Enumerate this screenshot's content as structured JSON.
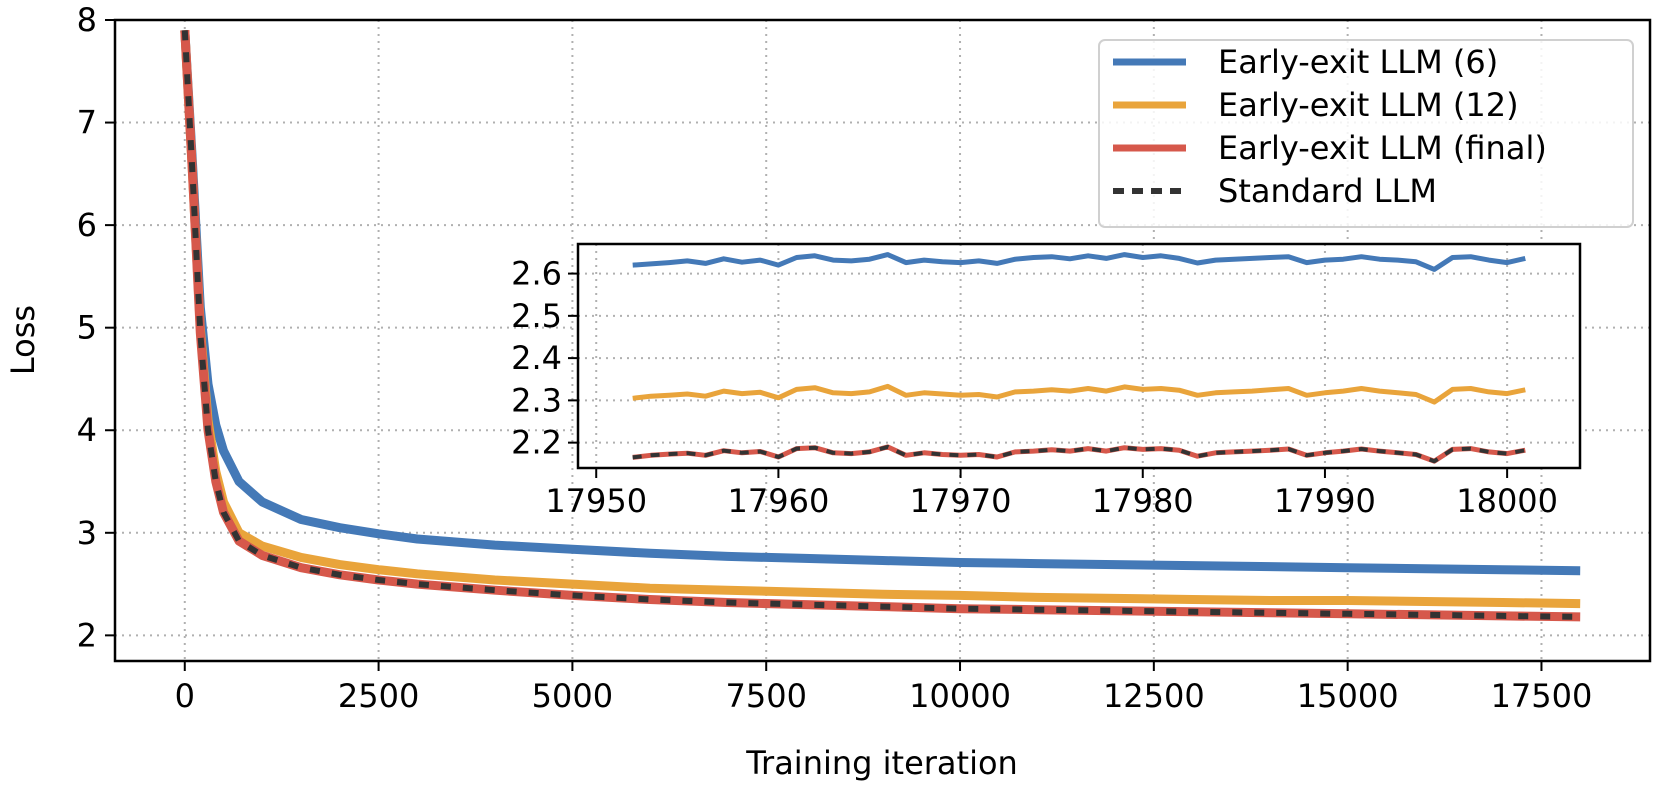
{
  "chart_data": [
    {
      "type": "line",
      "xlabel": "Training iteration",
      "ylabel": "Loss",
      "xlim": [
        -900,
        18900
      ],
      "ylim": [
        1.75,
        8
      ],
      "xticks": [
        0,
        2500,
        5000,
        7500,
        10000,
        12500,
        15000,
        17500
      ],
      "yticks": [
        2,
        3,
        4,
        5,
        6,
        7,
        8
      ],
      "grid": true,
      "legend": {
        "position": "top-right"
      },
      "series": [
        {
          "name": "Early-exit LLM (6)",
          "color": "#4479b7",
          "style": "solid",
          "x": [
            0,
            100,
            200,
            300,
            400,
            500,
            700,
            1000,
            1500,
            2000,
            2500,
            3000,
            4000,
            5000,
            6000,
            7000,
            8000,
            9000,
            10000,
            11000,
            12000,
            13000,
            14000,
            15000,
            16000,
            17000,
            18000
          ],
          "y": [
            7.9,
            6.6,
            5.2,
            4.45,
            4.05,
            3.8,
            3.5,
            3.3,
            3.13,
            3.05,
            2.99,
            2.94,
            2.88,
            2.84,
            2.8,
            2.77,
            2.75,
            2.73,
            2.71,
            2.7,
            2.69,
            2.68,
            2.67,
            2.66,
            2.65,
            2.64,
            2.63
          ]
        },
        {
          "name": "Early-exit LLM (12)",
          "color": "#e9a43b",
          "style": "solid",
          "x": [
            0,
            100,
            200,
            300,
            400,
            500,
            700,
            1000,
            1500,
            2000,
            2500,
            3000,
            4000,
            5000,
            6000,
            7000,
            8000,
            9000,
            10000,
            11000,
            12000,
            13000,
            14000,
            15000,
            16000,
            17000,
            18000
          ],
          "y": [
            7.9,
            6.5,
            5.0,
            4.1,
            3.6,
            3.3,
            3.0,
            2.87,
            2.76,
            2.69,
            2.64,
            2.6,
            2.54,
            2.5,
            2.46,
            2.44,
            2.42,
            2.4,
            2.39,
            2.37,
            2.36,
            2.35,
            2.34,
            2.34,
            2.33,
            2.32,
            2.31
          ]
        },
        {
          "name": "Early-exit LLM (final)",
          "color": "#d6584b",
          "style": "solid",
          "x": [
            0,
            100,
            200,
            300,
            400,
            500,
            700,
            1000,
            1500,
            2000,
            2500,
            3000,
            4000,
            5000,
            6000,
            7000,
            8000,
            9000,
            10000,
            11000,
            12000,
            13000,
            14000,
            15000,
            16000,
            17000,
            18000
          ],
          "y": [
            7.9,
            6.5,
            4.95,
            4.0,
            3.5,
            3.2,
            2.92,
            2.78,
            2.66,
            2.59,
            2.54,
            2.5,
            2.44,
            2.39,
            2.35,
            2.32,
            2.3,
            2.28,
            2.26,
            2.25,
            2.24,
            2.23,
            2.22,
            2.21,
            2.2,
            2.19,
            2.18
          ]
        },
        {
          "name": "Standard LLM",
          "color": "#333333",
          "style": "dashed",
          "x": [
            0,
            100,
            200,
            300,
            400,
            500,
            700,
            1000,
            1500,
            2000,
            2500,
            3000,
            4000,
            5000,
            6000,
            7000,
            8000,
            9000,
            10000,
            11000,
            12000,
            13000,
            14000,
            15000,
            16000,
            17000,
            18000
          ],
          "y": [
            7.9,
            6.5,
            4.95,
            4.0,
            3.5,
            3.2,
            2.92,
            2.78,
            2.66,
            2.59,
            2.54,
            2.5,
            2.44,
            2.39,
            2.35,
            2.32,
            2.3,
            2.28,
            2.26,
            2.25,
            2.24,
            2.23,
            2.22,
            2.21,
            2.2,
            2.19,
            2.18
          ]
        }
      ]
    },
    {
      "type": "line",
      "inset": true,
      "xlabel": "",
      "ylabel": "",
      "xlim": [
        17949,
        18004
      ],
      "ylim": [
        2.14,
        2.67
      ],
      "xticks": [
        17950,
        17960,
        17970,
        17980,
        17990,
        18000
      ],
      "yticks": [
        2.2,
        2.3,
        2.4,
        2.5,
        2.6
      ],
      "grid": true,
      "series": [
        {
          "name": "Early-exit LLM (6)",
          "color": "#4479b7",
          "style": "solid",
          "x": [
            17952,
            17953,
            17954,
            17955,
            17956,
            17957,
            17958,
            17959,
            17960,
            17961,
            17962,
            17963,
            17964,
            17965,
            17966,
            17967,
            17968,
            17969,
            17970,
            17971,
            17972,
            17973,
            17974,
            17975,
            17976,
            17977,
            17978,
            17979,
            17980,
            17981,
            17982,
            17983,
            17984,
            17985,
            17986,
            17987,
            17988,
            17989,
            17990,
            17991,
            17992,
            17993,
            17994,
            17995,
            17996,
            17997,
            17998,
            17999,
            18000,
            18001
          ],
          "y": [
            2.62,
            2.623,
            2.626,
            2.63,
            2.624,
            2.635,
            2.627,
            2.632,
            2.62,
            2.638,
            2.642,
            2.632,
            2.63,
            2.634,
            2.645,
            2.626,
            2.632,
            2.628,
            2.626,
            2.63,
            2.624,
            2.634,
            2.638,
            2.64,
            2.635,
            2.642,
            2.636,
            2.645,
            2.638,
            2.642,
            2.636,
            2.625,
            2.632,
            2.634,
            2.636,
            2.638,
            2.64,
            2.626,
            2.632,
            2.634,
            2.64,
            2.634,
            2.632,
            2.628,
            2.61,
            2.638,
            2.64,
            2.632,
            2.626,
            2.636
          ]
        },
        {
          "name": "Early-exit LLM (12)",
          "color": "#e9a43b",
          "style": "solid",
          "x": [
            17952,
            17953,
            17954,
            17955,
            17956,
            17957,
            17958,
            17959,
            17960,
            17961,
            17962,
            17963,
            17964,
            17965,
            17966,
            17967,
            17968,
            17969,
            17970,
            17971,
            17972,
            17973,
            17974,
            17975,
            17976,
            17977,
            17978,
            17979,
            17980,
            17981,
            17982,
            17983,
            17984,
            17985,
            17986,
            17987,
            17988,
            17989,
            17990,
            17991,
            17992,
            17993,
            17994,
            17995,
            17996,
            17997,
            17998,
            17999,
            18000,
            18001
          ],
          "y": [
            2.305,
            2.31,
            2.312,
            2.315,
            2.31,
            2.322,
            2.316,
            2.319,
            2.306,
            2.326,
            2.33,
            2.318,
            2.316,
            2.32,
            2.333,
            2.312,
            2.318,
            2.315,
            2.312,
            2.314,
            2.308,
            2.32,
            2.322,
            2.325,
            2.322,
            2.328,
            2.322,
            2.332,
            2.326,
            2.328,
            2.324,
            2.312,
            2.318,
            2.32,
            2.322,
            2.325,
            2.328,
            2.312,
            2.318,
            2.322,
            2.328,
            2.322,
            2.318,
            2.314,
            2.296,
            2.326,
            2.328,
            2.32,
            2.316,
            2.325
          ]
        },
        {
          "name": "Early-exit LLM (final)",
          "color": "#d6584b",
          "style": "solid",
          "x": [
            17952,
            17953,
            17954,
            17955,
            17956,
            17957,
            17958,
            17959,
            17960,
            17961,
            17962,
            17963,
            17964,
            17965,
            17966,
            17967,
            17968,
            17969,
            17970,
            17971,
            17972,
            17973,
            17974,
            17975,
            17976,
            17977,
            17978,
            17979,
            17980,
            17981,
            17982,
            17983,
            17984,
            17985,
            17986,
            17987,
            17988,
            17989,
            17990,
            17991,
            17992,
            17993,
            17994,
            17995,
            17996,
            17997,
            17998,
            17999,
            18000,
            18001
          ],
          "y": [
            2.165,
            2.17,
            2.173,
            2.175,
            2.17,
            2.181,
            2.176,
            2.179,
            2.166,
            2.186,
            2.188,
            2.176,
            2.174,
            2.178,
            2.19,
            2.17,
            2.176,
            2.172,
            2.17,
            2.172,
            2.166,
            2.178,
            2.18,
            2.183,
            2.18,
            2.186,
            2.18,
            2.188,
            2.184,
            2.186,
            2.182,
            2.168,
            2.176,
            2.178,
            2.18,
            2.182,
            2.185,
            2.17,
            2.176,
            2.18,
            2.185,
            2.18,
            2.176,
            2.172,
            2.156,
            2.184,
            2.186,
            2.178,
            2.174,
            2.182
          ]
        },
        {
          "name": "Standard LLM",
          "color": "#333333",
          "style": "dashed",
          "x": [
            17952,
            17953,
            17954,
            17955,
            17956,
            17957,
            17958,
            17959,
            17960,
            17961,
            17962,
            17963,
            17964,
            17965,
            17966,
            17967,
            17968,
            17969,
            17970,
            17971,
            17972,
            17973,
            17974,
            17975,
            17976,
            17977,
            17978,
            17979,
            17980,
            17981,
            17982,
            17983,
            17984,
            17985,
            17986,
            17987,
            17988,
            17989,
            17990,
            17991,
            17992,
            17993,
            17994,
            17995,
            17996,
            17997,
            17998,
            17999,
            18000,
            18001
          ],
          "y": [
            2.165,
            2.17,
            2.173,
            2.175,
            2.17,
            2.181,
            2.176,
            2.179,
            2.166,
            2.186,
            2.188,
            2.176,
            2.174,
            2.178,
            2.19,
            2.17,
            2.176,
            2.172,
            2.17,
            2.172,
            2.166,
            2.178,
            2.18,
            2.183,
            2.18,
            2.186,
            2.18,
            2.188,
            2.184,
            2.186,
            2.182,
            2.168,
            2.176,
            2.178,
            2.18,
            2.182,
            2.185,
            2.17,
            2.176,
            2.18,
            2.185,
            2.18,
            2.176,
            2.172,
            2.156,
            2.184,
            2.186,
            2.178,
            2.174,
            2.182
          ]
        }
      ]
    }
  ]
}
